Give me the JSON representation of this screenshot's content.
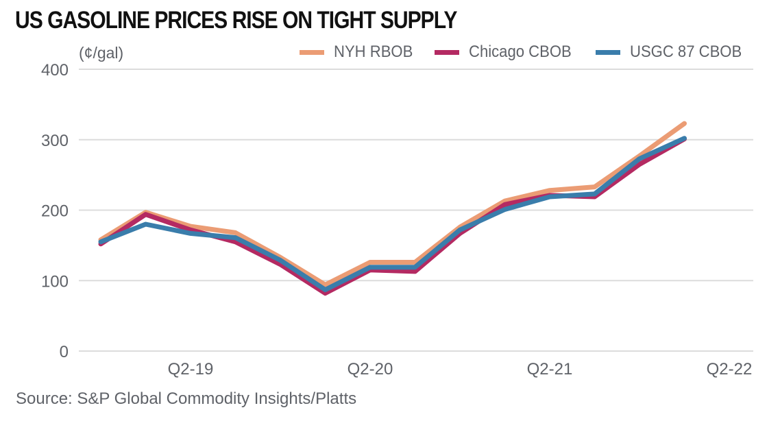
{
  "chart_data": {
    "type": "line",
    "title": "US GASOLINE PRICES RISE ON TIGHT SUPPLY",
    "ylabel": "(¢/gal)",
    "xlabel": "",
    "source": "Source: S&P Global Commodity Insights/Platts",
    "ylim": [
      0,
      400
    ],
    "yticks": [
      0,
      100,
      200,
      300,
      400
    ],
    "grid": true,
    "legend_position": "top-right",
    "x": [
      "Q4-18",
      "Q1-19",
      "Q2-19",
      "Q3-19",
      "Q4-19",
      "Q1-20",
      "Q2-20",
      "Q3-20",
      "Q4-20",
      "Q1-21",
      "Q2-21",
      "Q3-21",
      "Q4-21",
      "Q1-22"
    ],
    "xlim": [
      "Q3-18",
      "Q2-22"
    ],
    "xticks": [
      "Q2-19",
      "Q2-20",
      "Q2-21",
      "Q2-22"
    ],
    "series": [
      {
        "name": "NYH RBOB",
        "color": "#EB9C74",
        "values": [
          158,
          197,
          177,
          168,
          133,
          94,
          126,
          126,
          176,
          213,
          228,
          233,
          277,
          323
        ]
      },
      {
        "name": "Chicago CBOB",
        "color": "#B42A62",
        "values": [
          152,
          194,
          172,
          155,
          123,
          82,
          115,
          113,
          167,
          208,
          221,
          219,
          265,
          301
        ]
      },
      {
        "name": "USGC 87 CBOB",
        "color": "#3A7DAB",
        "values": [
          155,
          180,
          167,
          161,
          129,
          87,
          119,
          119,
          172,
          201,
          219,
          223,
          273,
          302
        ]
      }
    ]
  }
}
